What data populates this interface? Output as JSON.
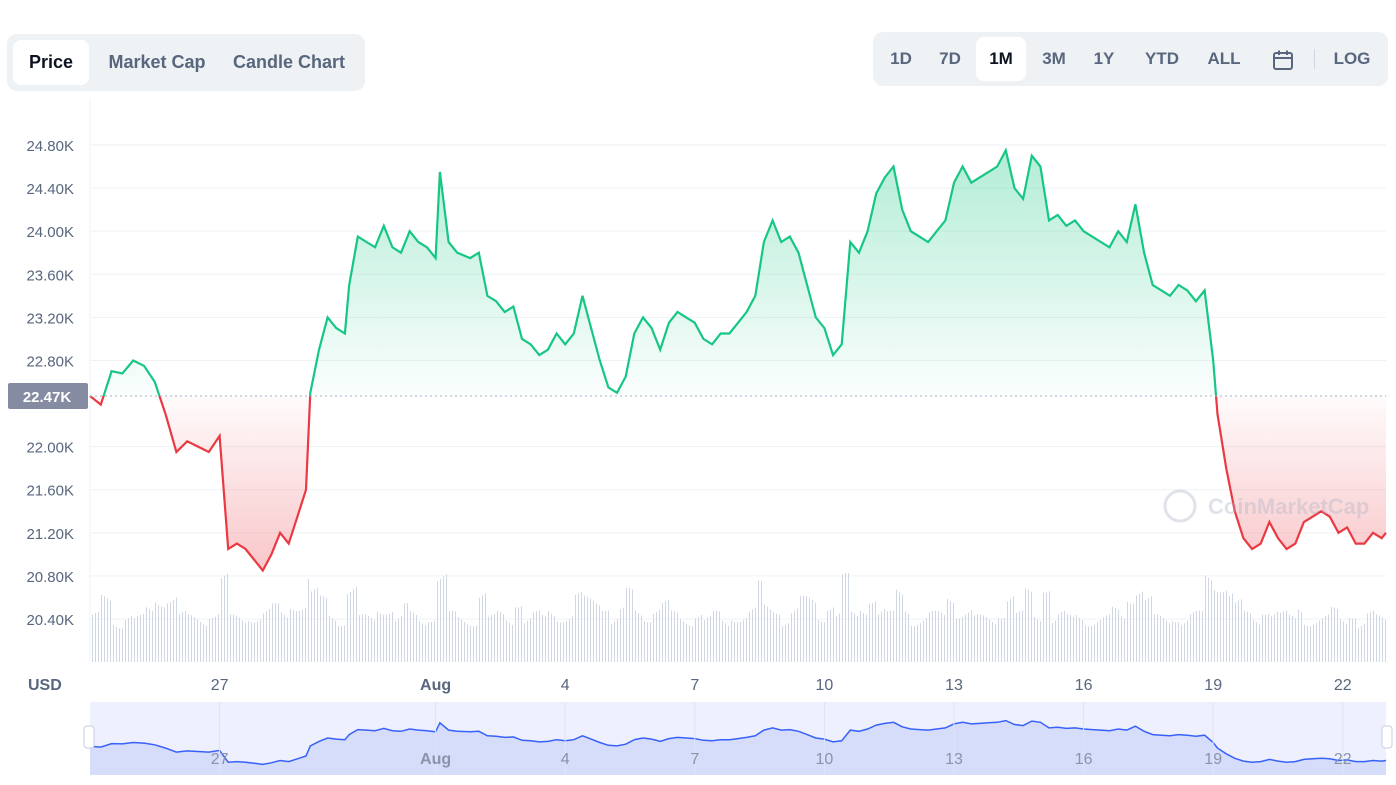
{
  "tabs": {
    "left": [
      {
        "label": "Price",
        "active": true
      },
      {
        "label": "Market Cap",
        "active": false
      },
      {
        "label": "Candle Chart",
        "active": false
      }
    ],
    "ranges": [
      {
        "label": "1D",
        "active": false
      },
      {
        "label": "7D",
        "active": false
      },
      {
        "label": "1M",
        "active": true
      },
      {
        "label": "3M",
        "active": false
      },
      {
        "label": "1Y",
        "active": false
      },
      {
        "label": "YTD",
        "active": false
      },
      {
        "label": "ALL",
        "active": false
      }
    ],
    "calendar_icon": "calendar-icon",
    "log_label": "LOG"
  },
  "chart_data": {
    "type": "area",
    "currency_label": "USD",
    "y_ticks": [
      "24.80K",
      "24.40K",
      "24.00K",
      "23.60K",
      "23.20K",
      "22.80K",
      "22.00K",
      "21.60K",
      "21.20K",
      "20.80K",
      "20.40K"
    ],
    "y_tick_values": [
      24800,
      24400,
      24000,
      23600,
      23200,
      22800,
      22000,
      21600,
      21200,
      20800,
      20400
    ],
    "ylim": [
      20400,
      24800
    ],
    "baseline_label": "22.47K",
    "baseline_value": 22470,
    "x_ticks": [
      "27",
      "Aug",
      "4",
      "7",
      "10",
      "13",
      "16",
      "19",
      "22"
    ],
    "x_tick_days": [
      27,
      32,
      35,
      38,
      41,
      44,
      47,
      50,
      53
    ],
    "xlim_days": [
      24,
      54
    ],
    "x_unit": "day (Jul 24 – Aug 23, 2022)",
    "colors": {
      "up": "#16c784",
      "down": "#ea3943",
      "volume": "#cfd6e4",
      "navigator": "#3861fb"
    },
    "watermark": "CoinMarketCap",
    "price_series": [
      [
        24.0,
        22470
      ],
      [
        24.25,
        22390
      ],
      [
        24.5,
        22700
      ],
      [
        24.75,
        22680
      ],
      [
        25.0,
        22800
      ],
      [
        25.25,
        22750
      ],
      [
        25.5,
        22600
      ],
      [
        25.75,
        22300
      ],
      [
        26.0,
        21950
      ],
      [
        26.25,
        22050
      ],
      [
        26.5,
        22000
      ],
      [
        26.75,
        21950
      ],
      [
        27.0,
        22100
      ],
      [
        27.2,
        21050
      ],
      [
        27.4,
        21100
      ],
      [
        27.6,
        21050
      ],
      [
        27.8,
        20950
      ],
      [
        28.0,
        20850
      ],
      [
        28.2,
        21000
      ],
      [
        28.4,
        21200
      ],
      [
        28.6,
        21100
      ],
      [
        28.8,
        21350
      ],
      [
        29.0,
        21600
      ],
      [
        29.1,
        22500
      ],
      [
        29.3,
        22900
      ],
      [
        29.5,
        23200
      ],
      [
        29.7,
        23100
      ],
      [
        29.9,
        23050
      ],
      [
        30.0,
        23500
      ],
      [
        30.2,
        23950
      ],
      [
        30.4,
        23900
      ],
      [
        30.6,
        23850
      ],
      [
        30.8,
        24050
      ],
      [
        31.0,
        23850
      ],
      [
        31.2,
        23800
      ],
      [
        31.4,
        24000
      ],
      [
        31.6,
        23900
      ],
      [
        31.8,
        23850
      ],
      [
        32.0,
        23750
      ],
      [
        32.1,
        24550
      ],
      [
        32.3,
        23900
      ],
      [
        32.5,
        23800
      ],
      [
        32.8,
        23750
      ],
      [
        33.0,
        23800
      ],
      [
        33.2,
        23400
      ],
      [
        33.4,
        23350
      ],
      [
        33.6,
        23250
      ],
      [
        33.8,
        23300
      ],
      [
        34.0,
        23000
      ],
      [
        34.2,
        22950
      ],
      [
        34.4,
        22850
      ],
      [
        34.6,
        22900
      ],
      [
        34.8,
        23050
      ],
      [
        35.0,
        22950
      ],
      [
        35.2,
        23050
      ],
      [
        35.4,
        23400
      ],
      [
        35.6,
        23100
      ],
      [
        35.8,
        22800
      ],
      [
        36.0,
        22550
      ],
      [
        36.2,
        22500
      ],
      [
        36.4,
        22650
      ],
      [
        36.6,
        23050
      ],
      [
        36.8,
        23200
      ],
      [
        37.0,
        23100
      ],
      [
        37.2,
        22900
      ],
      [
        37.4,
        23150
      ],
      [
        37.6,
        23250
      ],
      [
        37.8,
        23200
      ],
      [
        38.0,
        23150
      ],
      [
        38.2,
        23000
      ],
      [
        38.4,
        22950
      ],
      [
        38.6,
        23050
      ],
      [
        38.8,
        23050
      ],
      [
        39.0,
        23150
      ],
      [
        39.2,
        23250
      ],
      [
        39.4,
        23400
      ],
      [
        39.6,
        23900
      ],
      [
        39.8,
        24100
      ],
      [
        40.0,
        23900
      ],
      [
        40.2,
        23950
      ],
      [
        40.4,
        23800
      ],
      [
        40.6,
        23500
      ],
      [
        40.8,
        23200
      ],
      [
        41.0,
        23100
      ],
      [
        41.2,
        22850
      ],
      [
        41.4,
        22950
      ],
      [
        41.6,
        23900
      ],
      [
        41.8,
        23800
      ],
      [
        42.0,
        24000
      ],
      [
        42.2,
        24350
      ],
      [
        42.4,
        24500
      ],
      [
        42.6,
        24600
      ],
      [
        42.8,
        24200
      ],
      [
        43.0,
        24000
      ],
      [
        43.2,
        23950
      ],
      [
        43.4,
        23900
      ],
      [
        43.6,
        24000
      ],
      [
        43.8,
        24100
      ],
      [
        44.0,
        24450
      ],
      [
        44.2,
        24600
      ],
      [
        44.4,
        24450
      ],
      [
        44.6,
        24500
      ],
      [
        44.8,
        24550
      ],
      [
        45.0,
        24600
      ],
      [
        45.2,
        24750
      ],
      [
        45.4,
        24400
      ],
      [
        45.6,
        24300
      ],
      [
        45.8,
        24700
      ],
      [
        46.0,
        24600
      ],
      [
        46.2,
        24100
      ],
      [
        46.4,
        24150
      ],
      [
        46.6,
        24050
      ],
      [
        46.8,
        24100
      ],
      [
        47.0,
        24000
      ],
      [
        47.2,
        23950
      ],
      [
        47.4,
        23900
      ],
      [
        47.6,
        23850
      ],
      [
        47.8,
        24000
      ],
      [
        48.0,
        23900
      ],
      [
        48.2,
        24250
      ],
      [
        48.4,
        23800
      ],
      [
        48.6,
        23500
      ],
      [
        48.8,
        23450
      ],
      [
        49.0,
        23400
      ],
      [
        49.2,
        23500
      ],
      [
        49.4,
        23450
      ],
      [
        49.6,
        23350
      ],
      [
        49.8,
        23450
      ],
      [
        50.0,
        22800
      ],
      [
        50.1,
        22300
      ],
      [
        50.3,
        21800
      ],
      [
        50.5,
        21400
      ],
      [
        50.7,
        21150
      ],
      [
        50.9,
        21050
      ],
      [
        51.1,
        21100
      ],
      [
        51.3,
        21300
      ],
      [
        51.5,
        21150
      ],
      [
        51.7,
        21050
      ],
      [
        51.9,
        21100
      ],
      [
        52.1,
        21300
      ],
      [
        52.3,
        21350
      ],
      [
        52.5,
        21400
      ],
      [
        52.7,
        21350
      ],
      [
        52.9,
        21200
      ],
      [
        53.1,
        21250
      ],
      [
        53.3,
        21100
      ],
      [
        53.5,
        21100
      ],
      [
        53.7,
        21200
      ],
      [
        53.9,
        21150
      ],
      [
        54.0,
        21200
      ]
    ],
    "navigator_x_ticks": [
      "27",
      "Aug",
      "4",
      "7",
      "10",
      "13",
      "16",
      "19",
      "22"
    ]
  }
}
